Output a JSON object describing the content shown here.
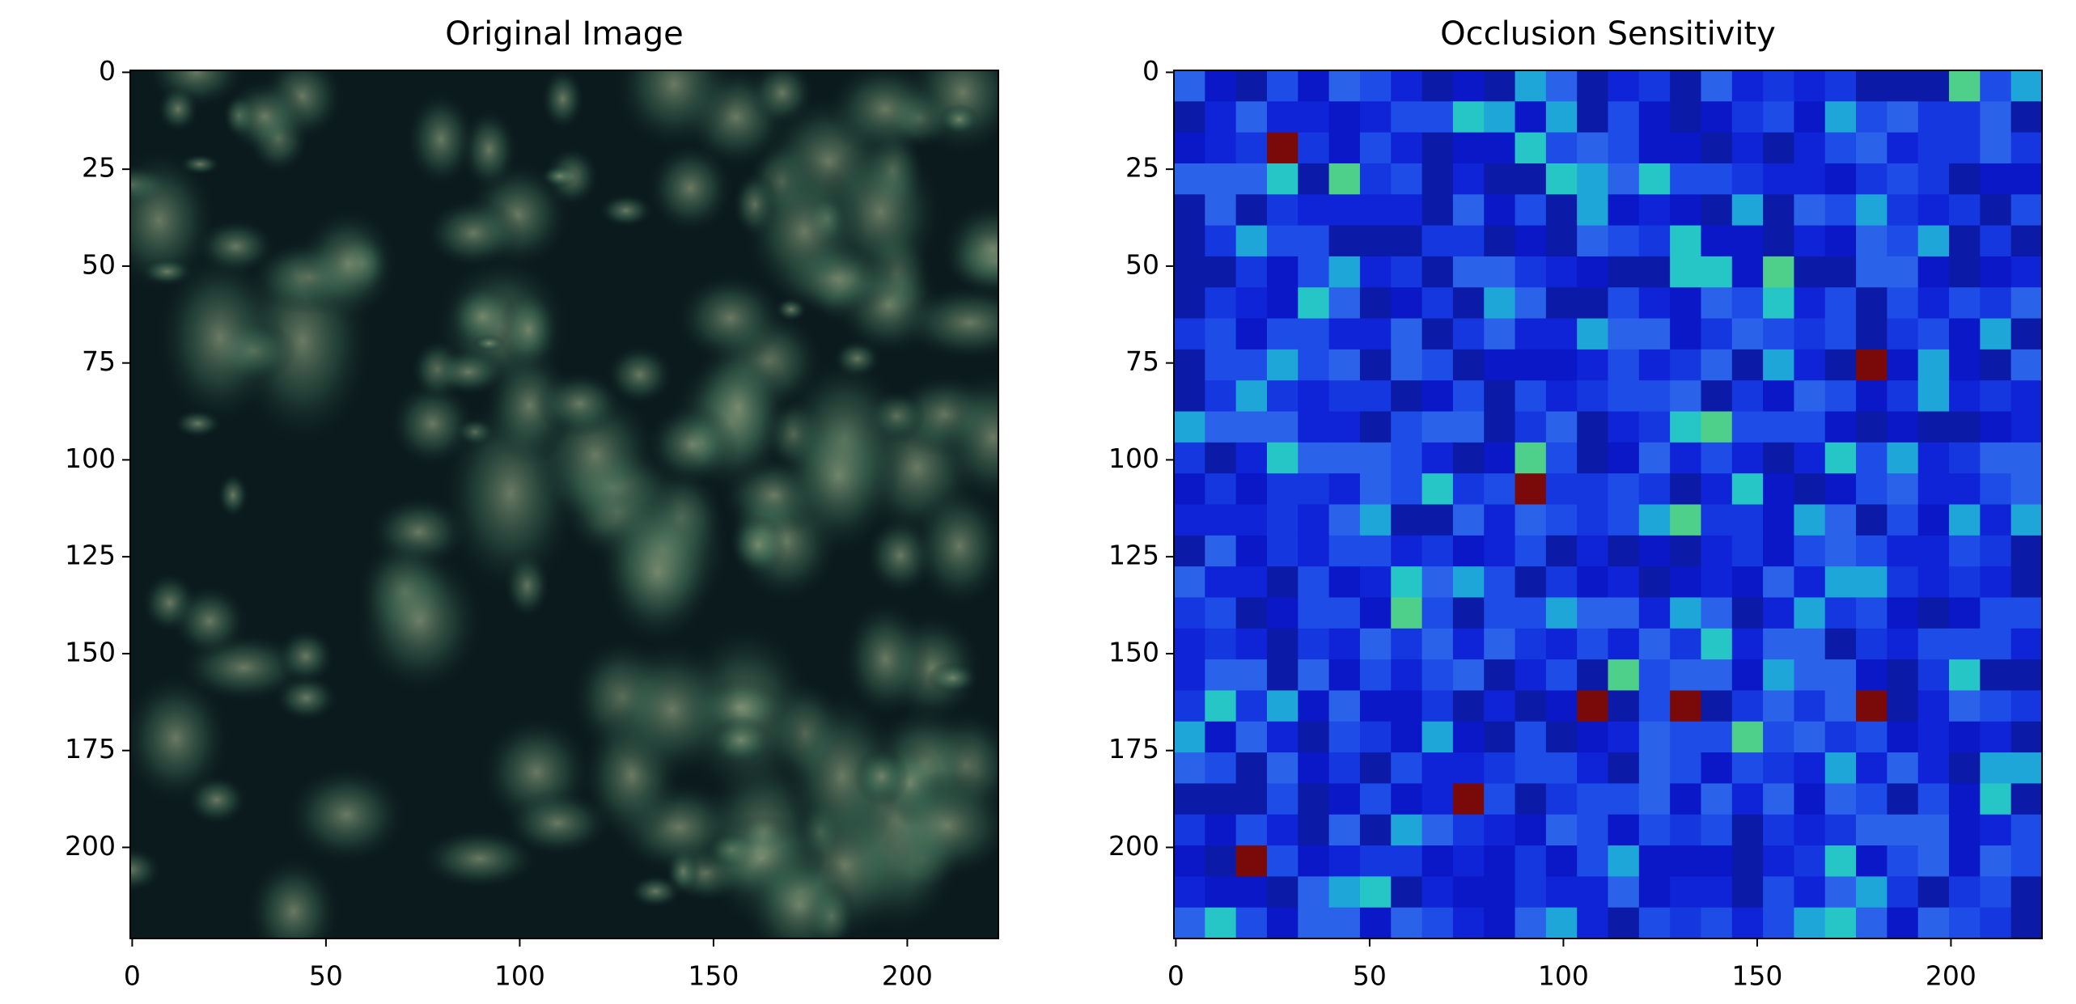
{
  "chart_data": [
    {
      "type": "image",
      "title": "Original Image",
      "xlim": [
        -0.5,
        223.5
      ],
      "ylim": [
        223.5,
        -0.5
      ],
      "xticks": [
        0,
        50,
        100,
        150,
        200
      ],
      "yticks": [
        0,
        25,
        50,
        75,
        100,
        125,
        150,
        175,
        200
      ]
    },
    {
      "type": "heatmap",
      "title": "Occlusion Sensitivity",
      "xlim": [
        -0.5,
        223.5
      ],
      "ylim": [
        223.5,
        -0.5
      ],
      "xticks": [
        0,
        50,
        100,
        150,
        200
      ],
      "yticks": [
        0,
        25,
        50,
        75,
        100,
        125,
        150,
        175,
        200
      ]
    }
  ]
}
